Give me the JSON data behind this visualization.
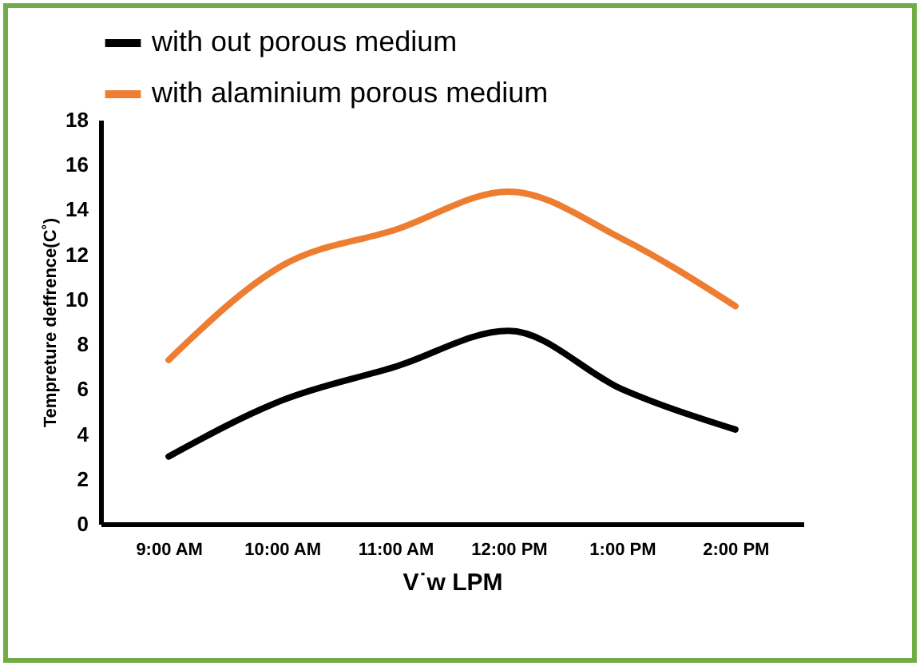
{
  "chart_data": {
    "type": "line",
    "xlabel": "V˙w LPM",
    "ylabel": "Tempreture deffrence(C˚)",
    "categories": [
      "9:00 AM",
      "10:00 AM",
      "11:00 AM",
      "12:00 PM",
      "1:00 PM",
      "2:00 PM"
    ],
    "series": [
      {
        "name": "with out porous medium",
        "color": "#000000",
        "values": [
          3.0,
          5.5,
          7.0,
          8.6,
          6.0,
          4.2
        ]
      },
      {
        "name": "with alaminium porous medium",
        "color": "#ed7d31",
        "values": [
          7.3,
          11.5,
          13.1,
          14.8,
          12.7,
          9.7
        ]
      }
    ],
    "ylim": [
      0,
      18
    ],
    "yticks": [
      0,
      2,
      4,
      6,
      8,
      10,
      12,
      14,
      16,
      18
    ],
    "grid": false,
    "legend": "top",
    "marker": "none",
    "line_style": "solid"
  }
}
